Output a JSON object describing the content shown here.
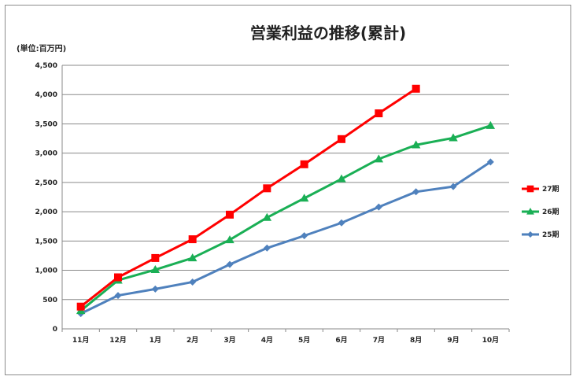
{
  "chart_data": {
    "type": "line",
    "title": "営業利益の推移(累計)",
    "unit_label": "(単位:百万円)",
    "xlabel": "",
    "ylabel": "",
    "categories": [
      "11月",
      "12月",
      "1月",
      "2月",
      "3月",
      "4月",
      "5月",
      "6月",
      "7月",
      "8月",
      "9月",
      "10月"
    ],
    "y_ticks": [
      "0",
      "500",
      "1,000",
      "1,500",
      "2,000",
      "2,500",
      "3,000",
      "3,500",
      "4,000",
      "4,500"
    ],
    "ylim": [
      0,
      4500
    ],
    "grid": true,
    "legend_position": "right",
    "series": [
      {
        "name": "27期",
        "color": "#ff0000",
        "marker": "square",
        "values": [
          380,
          880,
          1210,
          1530,
          1950,
          2400,
          2810,
          3240,
          3680,
          4100,
          null,
          null
        ]
      },
      {
        "name": "26期",
        "color": "#1aaf55",
        "marker": "triangle",
        "values": [
          310,
          830,
          1010,
          1210,
          1520,
          1900,
          2230,
          2560,
          2900,
          3140,
          3260,
          3470
        ]
      },
      {
        "name": "25期",
        "color": "#4f81bd",
        "marker": "diamond",
        "values": [
          260,
          570,
          680,
          800,
          1100,
          1380,
          1590,
          1810,
          2080,
          2340,
          2430,
          2850
        ]
      }
    ]
  }
}
